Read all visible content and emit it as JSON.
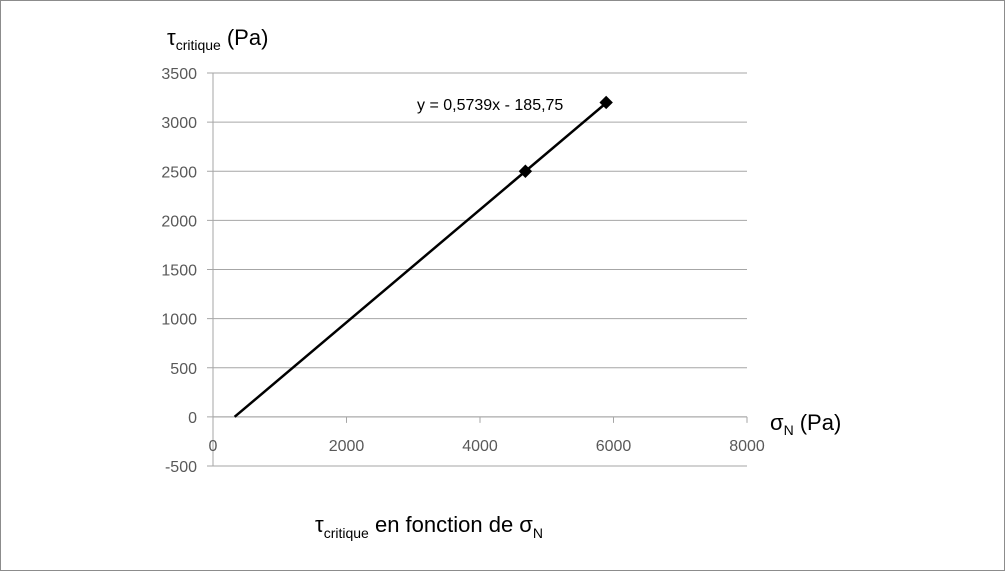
{
  "chart_data": {
    "type": "scatter",
    "title": {
      "main": "τ",
      "sub": "critique",
      "rest": " en fonction de σ",
      "sub2": "N"
    },
    "xlabel": {
      "main": "σ",
      "sub": "N",
      "unit": "(Pa)"
    },
    "ylabel": {
      "main": "τ",
      "sub": "critique",
      "unit": "(Pa)"
    },
    "xlim": [
      0,
      8000
    ],
    "ylim": [
      -500,
      3500
    ],
    "xticks": [
      0,
      2000,
      4000,
      6000,
      8000
    ],
    "yticks": [
      -500,
      0,
      500,
      1000,
      1500,
      2000,
      2500,
      3000,
      3500
    ],
    "grid": "horizontal",
    "series": [
      {
        "x": [
          4680,
          5890
        ],
        "y": [
          2500,
          3200
        ],
        "marker": "diamond",
        "color": "#000000"
      }
    ],
    "trendline": {
      "slope": 0.5739,
      "intercept": -185.75,
      "x_range": [
        324,
        5890
      ],
      "equation": "y = 0,5739x - 185,75"
    }
  }
}
